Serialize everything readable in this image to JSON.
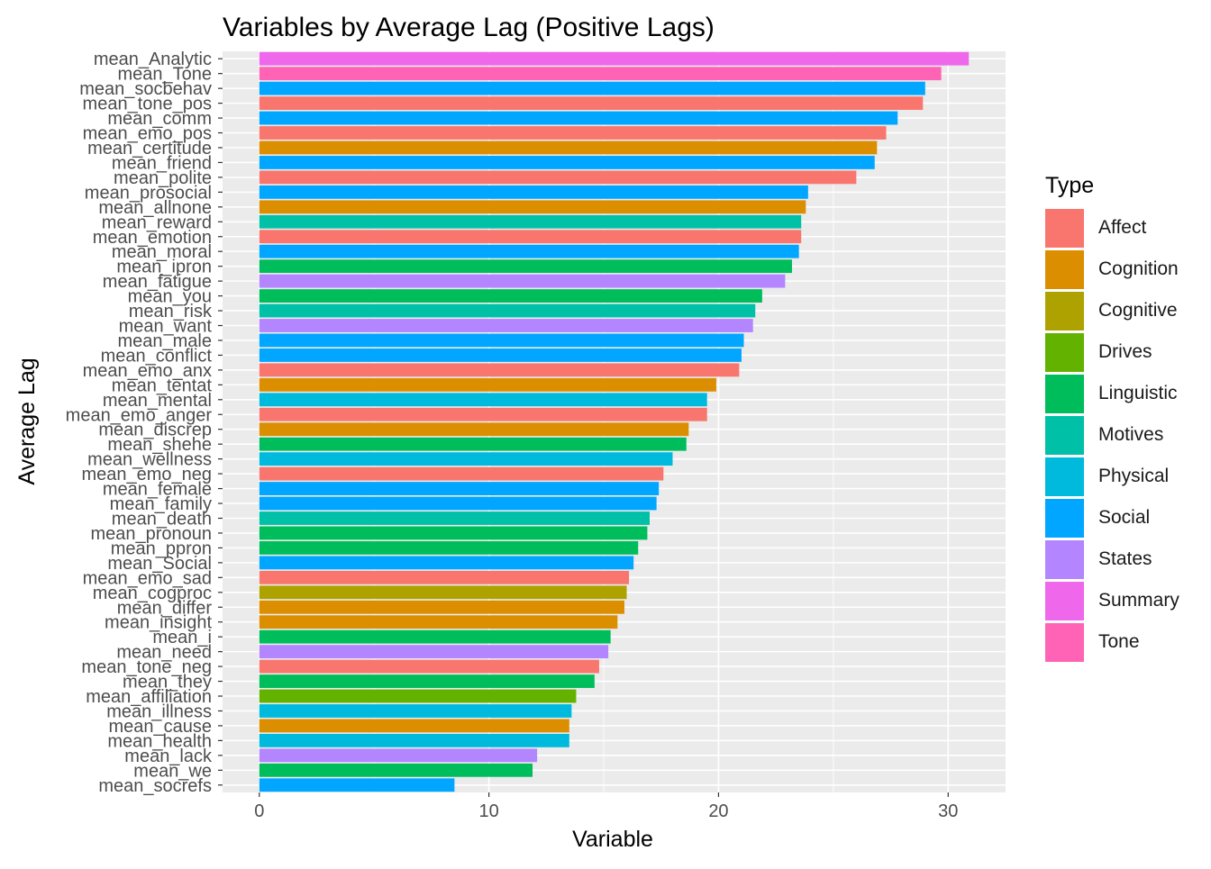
{
  "chart_data": {
    "type": "bar",
    "orientation": "horizontal",
    "title": "Variables by Average Lag (Positive Lags)",
    "xlabel": "Variable",
    "ylabel": "Average Lag",
    "xlim": [
      -1.6,
      32.5
    ],
    "xticks": [
      0,
      10,
      20,
      30
    ],
    "grid": true,
    "legend_position": "right",
    "legend_title": "Type",
    "types": [
      {
        "name": "Affect",
        "color": "#F8766D"
      },
      {
        "name": "Cognition",
        "color": "#DB8E00"
      },
      {
        "name": "Cognitive",
        "color": "#AEA200"
      },
      {
        "name": "Drives",
        "color": "#64B200"
      },
      {
        "name": "Linguistic",
        "color": "#00BD5C"
      },
      {
        "name": "Motives",
        "color": "#00C1A7"
      },
      {
        "name": "Physical",
        "color": "#00BADE"
      },
      {
        "name": "Social",
        "color": "#00A6FF"
      },
      {
        "name": "States",
        "color": "#B385FF"
      },
      {
        "name": "Summary",
        "color": "#EF67EB"
      },
      {
        "name": "Tone",
        "color": "#FF63B6"
      }
    ],
    "categories": [
      "mean_Analytic",
      "mean_Tone",
      "mean_socbehav",
      "mean_tone_pos",
      "mean_comm",
      "mean_emo_pos",
      "mean_certitude",
      "mean_friend",
      "mean_polite",
      "mean_prosocial",
      "mean_allnone",
      "mean_reward",
      "mean_emotion",
      "mean_moral",
      "mean_ipron",
      "mean_fatigue",
      "mean_you",
      "mean_risk",
      "mean_want",
      "mean_male",
      "mean_conflict",
      "mean_emo_anx",
      "mean_tentat",
      "mean_mental",
      "mean_emo_anger",
      "mean_discrep",
      "mean_shehe",
      "mean_wellness",
      "mean_emo_neg",
      "mean_female",
      "mean_family",
      "mean_death",
      "mean_pronoun",
      "mean_ppron",
      "mean_Social",
      "mean_emo_sad",
      "mean_cogproc",
      "mean_differ",
      "mean_insight",
      "mean_i",
      "mean_need",
      "mean_tone_neg",
      "mean_they",
      "mean_affiliation",
      "mean_illness",
      "mean_cause",
      "mean_health",
      "mean_lack",
      "mean_we",
      "mean_socrefs"
    ],
    "values": [
      30.9,
      29.7,
      29.0,
      28.9,
      27.8,
      27.3,
      26.9,
      26.8,
      26.0,
      23.9,
      23.8,
      23.6,
      23.6,
      23.5,
      23.2,
      22.9,
      21.9,
      21.6,
      21.5,
      21.1,
      21.0,
      20.9,
      19.9,
      19.5,
      19.5,
      18.7,
      18.6,
      18.0,
      17.6,
      17.4,
      17.3,
      17.0,
      16.9,
      16.5,
      16.3,
      16.1,
      16.0,
      15.9,
      15.6,
      15.3,
      15.2,
      14.8,
      14.6,
      13.8,
      13.6,
      13.5,
      13.5,
      12.1,
      11.9,
      8.5
    ],
    "series_type": [
      "Summary",
      "Tone",
      "Social",
      "Affect",
      "Social",
      "Affect",
      "Cognition",
      "Social",
      "Affect",
      "Social",
      "Cognition",
      "Motives",
      "Affect",
      "Social",
      "Linguistic",
      "States",
      "Linguistic",
      "Motives",
      "States",
      "Social",
      "Social",
      "Affect",
      "Cognition",
      "Physical",
      "Affect",
      "Cognition",
      "Linguistic",
      "Physical",
      "Affect",
      "Social",
      "Social",
      "Motives",
      "Linguistic",
      "Linguistic",
      "Social",
      "Affect",
      "Cognitive",
      "Cognition",
      "Cognition",
      "Linguistic",
      "States",
      "Affect",
      "Linguistic",
      "Drives",
      "Physical",
      "Cognition",
      "Physical",
      "States",
      "Linguistic",
      "Social"
    ]
  },
  "colors": {
    "panel_background": "#EBEBEB",
    "grid_major": "#FFFFFF",
    "axis_text": "#4D4D4D",
    "title_text": "#000000"
  }
}
